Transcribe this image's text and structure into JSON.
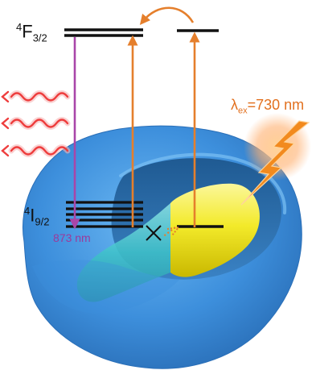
{
  "labels": {
    "upper_level": {
      "prefix": "4",
      "letter": "F",
      "suffix": "3/2"
    },
    "lower_level": {
      "prefix": "4",
      "letter": "I",
      "suffix": "9/2"
    },
    "emission": "873 nm",
    "excitation": {
      "symbol": "λ",
      "subscript": "ex",
      "value": "=730 nm"
    }
  },
  "colors": {
    "shell": "#3d8fdc",
    "shell_rim": "#5aa9ee",
    "cavity": "#2b6aa6",
    "rod_gold": "#f3ea2a",
    "rod_glass": "#3ec3c9",
    "excitation_arrow": "#e57f2c",
    "emission_arrow": "#a946a9",
    "emission_waves": "#ee3d3d",
    "lightning": "#f28a1e",
    "levels": "#111111"
  },
  "icons": {
    "wavy_photons": "emission-wave-icon",
    "lightning": "lightning-bolt-icon",
    "transfer_blocked": "cross-mark-icon"
  }
}
